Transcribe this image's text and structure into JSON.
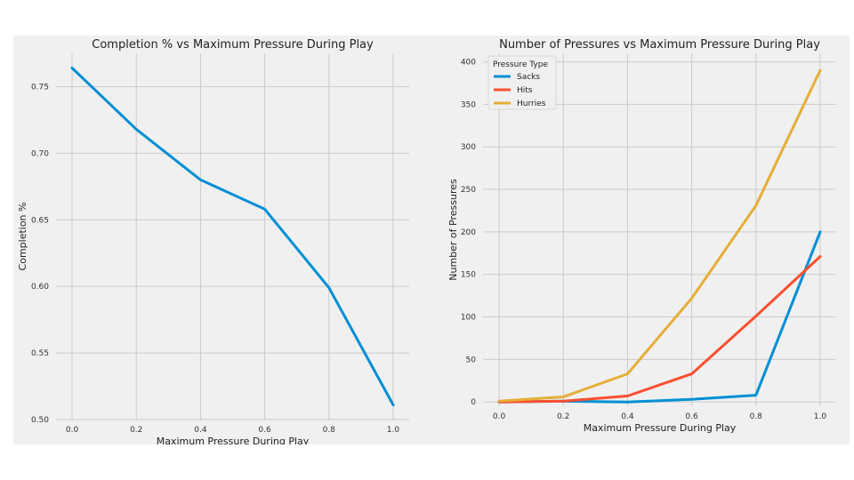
{
  "chart_data": [
    {
      "type": "line",
      "title": "Completion % vs Maximum Pressure During Play",
      "xlabel": "Maximum Pressure During Play",
      "ylabel": "Completion %",
      "xlim": [
        -0.05,
        1.05
      ],
      "ylim": [
        0.5,
        0.775
      ],
      "x_ticks": [
        "0.0",
        "0.2",
        "0.4",
        "0.6",
        "0.8",
        "1.0"
      ],
      "y_ticks": [
        "0.50",
        "0.55",
        "0.60",
        "0.65",
        "0.70",
        "0.75"
      ],
      "grid": true,
      "x": [
        0.0,
        0.2,
        0.4,
        0.6,
        0.8,
        1.0
      ],
      "series": [
        {
          "values": [
            0.764,
            0.718,
            0.68,
            0.658,
            0.599,
            0.511
          ],
          "color": "#008fd5"
        }
      ]
    },
    {
      "type": "line",
      "title": "Number of Pressures vs Maximum Pressure During Play",
      "xlabel": "Maximum Pressure During Play",
      "ylabel": "Number of Pressures",
      "xlim": [
        -0.05,
        1.05
      ],
      "ylim": [
        -5,
        410
      ],
      "x_ticks": [
        "0.0",
        "0.2",
        "0.4",
        "0.6",
        "0.8",
        "1.0"
      ],
      "y_ticks": [
        "0",
        "50",
        "100",
        "150",
        "200",
        "250",
        "300",
        "350",
        "400"
      ],
      "grid": true,
      "legend": {
        "title": "Pressure Type",
        "placement": "top-left"
      },
      "x": [
        0.0,
        0.2,
        0.4,
        0.6,
        0.8,
        1.0
      ],
      "series": [
        {
          "name": "Sacks",
          "values": [
            0,
            1,
            0,
            3,
            8,
            200
          ],
          "color": "#008fd5"
        },
        {
          "name": "Hits",
          "values": [
            0,
            1,
            7,
            33,
            101,
            171
          ],
          "color": "#fc4f30"
        },
        {
          "name": "Hurries",
          "values": [
            1,
            6,
            33,
            122,
            231,
            390
          ],
          "color": "#e5ae38"
        }
      ]
    }
  ]
}
